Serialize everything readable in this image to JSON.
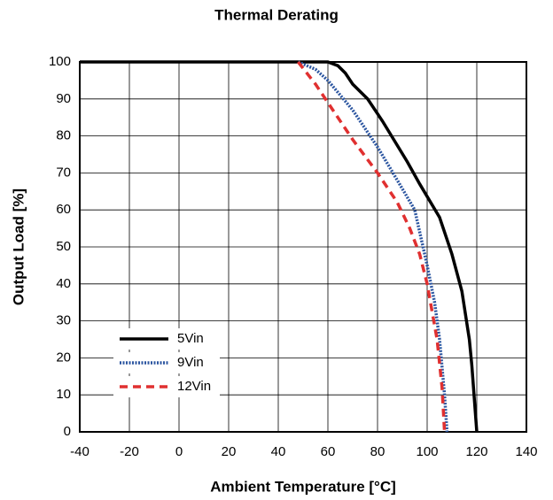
{
  "chart_data": {
    "type": "line",
    "title": "Thermal Derating",
    "x_label": "Ambient Temperature [°C]",
    "y_label": "Output Load [%]",
    "xlim": [
      -40,
      140
    ],
    "xticks": [
      -40,
      -20,
      0,
      20,
      40,
      60,
      80,
      100,
      120,
      140
    ],
    "ylim": [
      0,
      100
    ],
    "yticks": [
      0,
      10,
      20,
      30,
      40,
      50,
      60,
      70,
      80,
      90,
      100
    ],
    "grid": true,
    "legend": "lower left",
    "series": [
      {
        "name": "5Vin",
        "color": "#000000",
        "dash": "solid",
        "x": [
          -40,
          60,
          64,
          67,
          70,
          76,
          82,
          92,
          97,
          105,
          110,
          114,
          117,
          118,
          120
        ],
        "values": [
          100,
          100,
          99,
          97,
          94,
          90,
          84,
          73,
          67,
          58,
          48,
          38,
          25,
          18,
          0
        ]
      },
      {
        "name": "9Vin",
        "color": "#2b55a0",
        "dash": "dotted",
        "x": [
          48,
          55,
          60,
          70,
          80,
          88,
          95,
          100,
          103,
          105,
          107,
          108
        ],
        "values": [
          100,
          98,
          95,
          87,
          77,
          68,
          60,
          45,
          35,
          25,
          10,
          0
        ]
      },
      {
        "name": "12Vin",
        "color": "#e03030",
        "dash": "dashed",
        "x": [
          48,
          55,
          62,
          70,
          80,
          88,
          93,
          97,
          100,
          104,
          106,
          107
        ],
        "values": [
          100,
          94,
          87,
          79,
          70,
          62,
          55,
          48,
          40,
          25,
          12,
          0
        ]
      }
    ]
  }
}
